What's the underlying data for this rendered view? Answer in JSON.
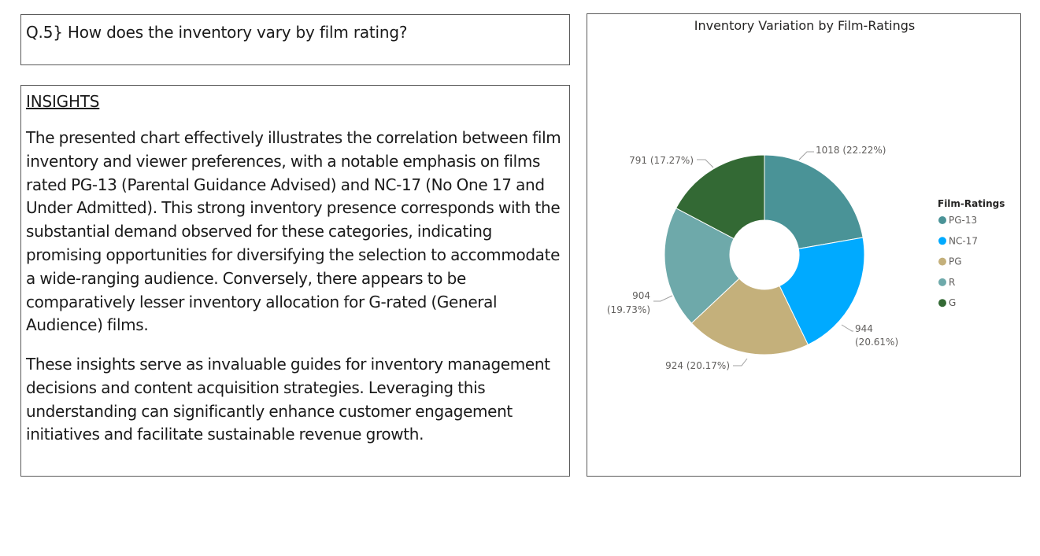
{
  "question": {
    "text": "Q.5} How does the inventory vary by film rating?"
  },
  "insights": {
    "heading": "INSIGHTS",
    "paragraph1": "The presented chart effectively illustrates the correlation between film inventory and viewer preferences, with a notable emphasis on films rated PG-13 (Parental Guidance Advised) and NC-17 (No One 17 and Under Admitted). This strong inventory presence corresponds with the substantial demand observed for these categories, indicating promising opportunities for diversifying the selection to accommodate a wide-ranging audience. Conversely, there appears to be comparatively lesser inventory allocation for G-rated (General Audience) films.",
    "paragraph2": "These insights serve as invaluable guides for inventory management decisions and content acquisition strategies. Leveraging this understanding can significantly enhance customer engagement initiatives and facilitate sustainable revenue growth."
  },
  "chart_data": {
    "type": "pie",
    "subtype": "donut",
    "title": "Inventory Variation by Film-Ratings",
    "legend_title": "Film-Ratings",
    "legend_position": "right",
    "categories": [
      "PG-13",
      "NC-17",
      "PG",
      "R",
      "G"
    ],
    "values": [
      1018,
      944,
      924,
      904,
      791
    ],
    "percentages": [
      "22.22%",
      "20.61%",
      "20.17%",
      "19.73%",
      "17.27%"
    ],
    "data_labels": [
      [
        "1018 (22.22%)"
      ],
      [
        "944",
        "(20.61%)"
      ],
      [
        "924 (20.17%)"
      ],
      [
        "904",
        "(19.73%)"
      ],
      [
        "791 (17.27%)"
      ]
    ],
    "colors": [
      "#4a9397",
      "#00aaff",
      "#c4b07b",
      "#6ea9aa",
      "#336934"
    ]
  }
}
